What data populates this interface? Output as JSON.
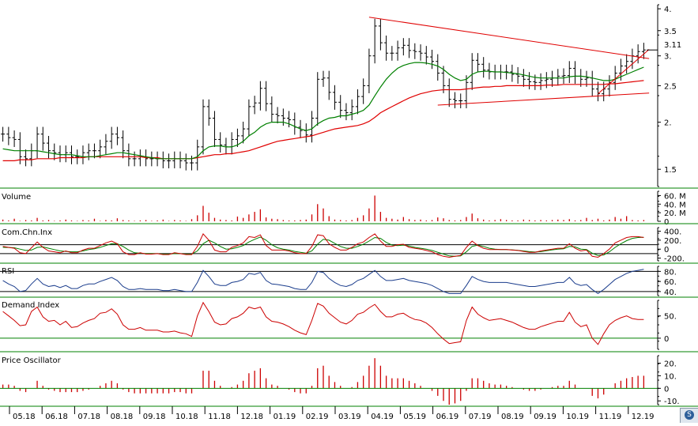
{
  "chart_data": {
    "type": "stock-chart",
    "colors": {
      "price_bar": "#000000",
      "ma_short": "#008000",
      "ma_long": "#e00000",
      "trendline": "#e00000",
      "volume": "#cc0000",
      "cci": "#cc0000",
      "cci_signal": "#008000",
      "rsi": "#1a3c8c",
      "demand": "#cc0000",
      "oscillator": "#cc0000",
      "separator": "#008000"
    },
    "x_axis": {
      "labels": [
        "05.18",
        "06.18",
        "07.18",
        "08.18",
        "09.18",
        "10.18",
        "11.18",
        "12.18",
        "01.19",
        "02.19",
        "03.19",
        "04.19",
        "05.19",
        "06.19",
        "07.19",
        "08.19",
        "09.19",
        "10.19",
        "11.19",
        "12.19"
      ]
    },
    "price": {
      "ylim": [
        1.35,
        4.1
      ],
      "log_scale": true,
      "ticks": [
        "4.",
        "3.5",
        "3.",
        "2.5",
        "2.",
        "1.5"
      ],
      "tick_values": [
        4.0,
        3.5,
        3.0,
        2.5,
        2.0,
        1.5
      ],
      "last_value": "3.11",
      "last": 3.11,
      "close": [
        1.86,
        1.82,
        1.8,
        1.62,
        1.6,
        1.68,
        1.86,
        1.76,
        1.68,
        1.66,
        1.64,
        1.66,
        1.62,
        1.62,
        1.66,
        1.68,
        1.68,
        1.72,
        1.78,
        1.86,
        1.82,
        1.68,
        1.6,
        1.6,
        1.62,
        1.6,
        1.6,
        1.6,
        1.58,
        1.58,
        1.6,
        1.58,
        1.56,
        1.56,
        1.72,
        2.2,
        2.05,
        1.8,
        1.74,
        1.72,
        1.8,
        1.84,
        1.92,
        2.2,
        2.25,
        2.46,
        2.24,
        2.1,
        2.08,
        2.05,
        2.03,
        1.94,
        1.9,
        1.85,
        2.05,
        2.6,
        2.62,
        2.4,
        2.26,
        2.15,
        2.12,
        2.2,
        2.34,
        2.5,
        3.0,
        3.6,
        3.25,
        3.05,
        3.05,
        3.15,
        3.2,
        3.1,
        3.08,
        3.05,
        2.98,
        2.9,
        2.7,
        2.5,
        2.3,
        2.28,
        2.28,
        2.55,
        2.92,
        2.85,
        2.75,
        2.72,
        2.72,
        2.72,
        2.72,
        2.68,
        2.65,
        2.6,
        2.56,
        2.55,
        2.58,
        2.6,
        2.62,
        2.65,
        2.66,
        2.78,
        2.65,
        2.6,
        2.62,
        2.45,
        2.38,
        2.45,
        2.55,
        2.7,
        2.82,
        2.9,
        3.0,
        3.08,
        3.11
      ],
      "ma_short": [
        1.7,
        1.69,
        1.68,
        1.68,
        1.68,
        1.68,
        1.68,
        1.67,
        1.66,
        1.65,
        1.64,
        1.64,
        1.64,
        1.63,
        1.62,
        1.62,
        1.62,
        1.63,
        1.64,
        1.65,
        1.66,
        1.66,
        1.65,
        1.64,
        1.63,
        1.62,
        1.61,
        1.6,
        1.6,
        1.6,
        1.6,
        1.6,
        1.6,
        1.6,
        1.62,
        1.68,
        1.72,
        1.73,
        1.73,
        1.72,
        1.72,
        1.74,
        1.78,
        1.84,
        1.88,
        1.94,
        1.98,
        2.0,
        2.0,
        2.0,
        1.98,
        1.95,
        1.92,
        1.9,
        1.92,
        1.98,
        2.02,
        2.05,
        2.06,
        2.08,
        2.08,
        2.1,
        2.12,
        2.15,
        2.22,
        2.35,
        2.48,
        2.6,
        2.7,
        2.78,
        2.83,
        2.86,
        2.88,
        2.88,
        2.87,
        2.85,
        2.82,
        2.76,
        2.68,
        2.62,
        2.58,
        2.6,
        2.68,
        2.72,
        2.73,
        2.73,
        2.72,
        2.72,
        2.71,
        2.7,
        2.69,
        2.67,
        2.65,
        2.63,
        2.62,
        2.62,
        2.62,
        2.62,
        2.62,
        2.64,
        2.65,
        2.65,
        2.64,
        2.62,
        2.6,
        2.58,
        2.58,
        2.6,
        2.64,
        2.68,
        2.72,
        2.76,
        2.8
      ],
      "ma_long": [
        1.58,
        1.58,
        1.58,
        1.59,
        1.59,
        1.59,
        1.6,
        1.6,
        1.6,
        1.6,
        1.61,
        1.61,
        1.61,
        1.61,
        1.61,
        1.62,
        1.62,
        1.62,
        1.62,
        1.62,
        1.62,
        1.62,
        1.62,
        1.62,
        1.62,
        1.61,
        1.61,
        1.61,
        1.6,
        1.6,
        1.6,
        1.6,
        1.6,
        1.6,
        1.61,
        1.62,
        1.63,
        1.64,
        1.64,
        1.65,
        1.65,
        1.66,
        1.67,
        1.68,
        1.7,
        1.72,
        1.74,
        1.76,
        1.78,
        1.79,
        1.8,
        1.81,
        1.82,
        1.83,
        1.84,
        1.86,
        1.88,
        1.9,
        1.92,
        1.93,
        1.94,
        1.95,
        1.96,
        1.98,
        2.01,
        2.06,
        2.12,
        2.16,
        2.2,
        2.24,
        2.28,
        2.32,
        2.35,
        2.38,
        2.4,
        2.42,
        2.43,
        2.44,
        2.44,
        2.44,
        2.44,
        2.45,
        2.46,
        2.47,
        2.48,
        2.48,
        2.49,
        2.49,
        2.5,
        2.5,
        2.5,
        2.5,
        2.5,
        2.5,
        2.5,
        2.51,
        2.51,
        2.51,
        2.52,
        2.52,
        2.52,
        2.52,
        2.52,
        2.52,
        2.52,
        2.52,
        2.53,
        2.53,
        2.54,
        2.55,
        2.56,
        2.57,
        2.58
      ],
      "trendlines": [
        {
          "from": [
            64,
            3.8
          ],
          "to": [
            111,
            2.95
          ]
        },
        {
          "from": [
            76,
            2.22
          ],
          "to": [
            111,
            2.39
          ]
        },
        {
          "from": [
            104,
            2.38
          ],
          "to": [
            111,
            3.12
          ]
        }
      ]
    },
    "volume": {
      "title": "Volume",
      "ticks": [
        "60. M",
        "40. M",
        "20. M",
        "0"
      ],
      "tick_values": [
        60,
        40,
        20,
        0
      ],
      "ylim": [
        0,
        70
      ],
      "values": [
        4,
        2,
        6,
        1,
        3,
        2,
        8,
        2,
        3,
        1,
        2,
        4,
        2,
        1,
        3,
        2,
        6,
        1,
        3,
        2,
        7,
        3,
        2,
        1,
        2,
        3,
        1,
        2,
        4,
        1,
        3,
        2,
        1,
        5,
        14,
        36,
        20,
        8,
        4,
        3,
        2,
        11,
        8,
        16,
        22,
        28,
        9,
        6,
        5,
        3,
        2,
        2,
        3,
        4,
        16,
        40,
        30,
        12,
        4,
        3,
        2,
        3,
        8,
        14,
        30,
        60,
        22,
        8,
        6,
        4,
        10,
        5,
        3,
        4,
        2,
        3,
        9,
        7,
        3,
        2,
        3,
        10,
        18,
        7,
        4,
        2,
        3,
        5,
        3,
        2,
        2,
        4,
        3,
        2,
        3,
        2,
        3,
        4,
        3,
        5,
        2,
        3,
        8,
        3,
        6,
        2,
        4,
        10,
        6,
        12,
        3,
        2,
        3
      ],
      "unit": "M"
    },
    "cci": {
      "title": "Com.Chn.Inx",
      "ticks": [
        "400.",
        "200.",
        "0",
        "-200."
      ],
      "tick_values": [
        400,
        200,
        0,
        -200
      ],
      "ylim": [
        -260,
        480
      ],
      "ref_lines": [
        100,
        -100
      ],
      "values": [
        60,
        40,
        20,
        -80,
        -100,
        30,
        160,
        40,
        -40,
        -60,
        -80,
        -40,
        -80,
        -80,
        -20,
        20,
        20,
        80,
        140,
        180,
        120,
        -60,
        -120,
        -120,
        -80,
        -110,
        -110,
        -100,
        -120,
        -120,
        -80,
        -100,
        -120,
        -120,
        60,
        340,
        200,
        -20,
        -60,
        -60,
        40,
        80,
        140,
        280,
        260,
        320,
        80,
        -20,
        -20,
        -20,
        -40,
        -80,
        -100,
        -100,
        60,
        320,
        300,
        120,
        40,
        -20,
        -20,
        40,
        120,
        160,
        260,
        340,
        180,
        60,
        60,
        100,
        110,
        40,
        20,
        0,
        -30,
        -60,
        -120,
        -160,
        -180,
        -160,
        -140,
        40,
        180,
        80,
        20,
        -10,
        -10,
        -10,
        -10,
        -20,
        -30,
        -50,
        -70,
        -70,
        -40,
        -20,
        0,
        20,
        20,
        120,
        20,
        -40,
        -20,
        -160,
        -180,
        -100,
        0,
        140,
        200,
        260,
        280,
        280,
        260
      ],
      "signal": [
        40,
        38,
        30,
        0,
        -30,
        -20,
        40,
        50,
        20,
        -10,
        -40,
        -50,
        -60,
        -60,
        -40,
        -10,
        10,
        40,
        80,
        120,
        120,
        60,
        -20,
        -80,
        -90,
        -100,
        -100,
        -100,
        -110,
        -110,
        -100,
        -100,
        -110,
        -110,
        -40,
        120,
        200,
        140,
        60,
        0,
        10,
        40,
        80,
        160,
        220,
        270,
        200,
        100,
        30,
        0,
        -20,
        -50,
        -70,
        -90,
        -40,
        110,
        220,
        200,
        130,
        60,
        20,
        20,
        60,
        110,
        180,
        260,
        240,
        150,
        90,
        80,
        90,
        70,
        40,
        20,
        0,
        -30,
        -70,
        -110,
        -150,
        -160,
        -150,
        -60,
        60,
        90,
        60,
        20,
        0,
        -10,
        -10,
        -15,
        -25,
        -40,
        -55,
        -65,
        -55,
        -35,
        -15,
        0,
        10,
        60,
        50,
        0,
        -10,
        -90,
        -140,
        -130,
        -60,
        40,
        120,
        190,
        240,
        260,
        265
      ],
      "labels": []
    },
    "rsi": {
      "title": "RSI",
      "ticks": [
        "80.",
        "60.",
        "40."
      ],
      "tick_values": [
        80,
        60,
        40
      ],
      "ylim": [
        32,
        90
      ],
      "ref_lines": [
        80,
        40
      ],
      "values": [
        62,
        55,
        50,
        40,
        42,
        55,
        66,
        55,
        50,
        52,
        48,
        52,
        46,
        46,
        52,
        55,
        55,
        60,
        64,
        68,
        62,
        50,
        44,
        44,
        46,
        44,
        44,
        44,
        42,
        42,
        44,
        42,
        40,
        40,
        58,
        82,
        70,
        55,
        52,
        52,
        58,
        60,
        64,
        76,
        74,
        78,
        62,
        55,
        54,
        52,
        50,
        46,
        44,
        44,
        58,
        80,
        78,
        66,
        58,
        52,
        50,
        54,
        62,
        66,
        74,
        82,
        70,
        62,
        62,
        64,
        66,
        62,
        60,
        58,
        56,
        52,
        46,
        40,
        36,
        36,
        36,
        52,
        70,
        64,
        60,
        58,
        58,
        58,
        58,
        56,
        54,
        52,
        50,
        50,
        52,
        54,
        56,
        58,
        58,
        68,
        56,
        52,
        54,
        44,
        36,
        44,
        54,
        64,
        70,
        76,
        80,
        82,
        84
      ],
      "labels": []
    },
    "demand": {
      "title": "Demand Index",
      "ticks": [
        "50.",
        "0"
      ],
      "tick_values": [
        50,
        0
      ],
      "ylim": [
        -25,
        85
      ],
      "ref_lines": [
        0
      ],
      "values": [
        60,
        50,
        40,
        28,
        30,
        60,
        70,
        48,
        38,
        40,
        30,
        38,
        24,
        26,
        34,
        40,
        44,
        56,
        58,
        66,
        54,
        30,
        20,
        20,
        24,
        18,
        18,
        18,
        14,
        14,
        16,
        12,
        10,
        4,
        50,
        80,
        60,
        36,
        30,
        32,
        44,
        48,
        56,
        70,
        66,
        70,
        48,
        38,
        36,
        32,
        26,
        18,
        12,
        8,
        40,
        78,
        72,
        56,
        46,
        36,
        32,
        40,
        54,
        58,
        68,
        76,
        60,
        48,
        48,
        54,
        56,
        48,
        42,
        40,
        34,
        24,
        10,
        -2,
        -12,
        -10,
        -8,
        40,
        70,
        54,
        46,
        40,
        42,
        44,
        40,
        36,
        30,
        24,
        20,
        20,
        26,
        30,
        34,
        38,
        38,
        58,
        36,
        26,
        30,
        0,
        -14,
        10,
        30,
        40,
        46,
        50,
        44,
        42,
        42
      ],
      "labels": []
    },
    "oscillator": {
      "title": "Price Oscillator",
      "ticks": [
        "20.",
        "10.",
        "0",
        "-10."
      ],
      "tick_values": [
        20,
        10,
        0,
        -10
      ],
      "ylim": [
        -13,
        26
      ],
      "ref_lines": [
        0
      ],
      "values": [
        3,
        3,
        2,
        -2,
        -3,
        0,
        6,
        2,
        -1,
        -2,
        -3,
        -3,
        -3,
        -3,
        -2,
        -1,
        0,
        2,
        4,
        6,
        4,
        -1,
        -3,
        -4,
        -4,
        -4,
        -4,
        -4,
        -4,
        -4,
        -3,
        -3,
        -4,
        -4,
        0,
        14,
        14,
        6,
        2,
        0,
        1,
        3,
        6,
        12,
        14,
        16,
        8,
        3,
        2,
        0,
        -1,
        -3,
        -4,
        -4,
        2,
        16,
        18,
        10,
        5,
        2,
        0,
        1,
        5,
        10,
        18,
        24,
        18,
        10,
        8,
        8,
        8,
        6,
        4,
        2,
        0,
        -2,
        -6,
        -10,
        -13,
        -12,
        -10,
        -2,
        8,
        8,
        6,
        4,
        3,
        3,
        2,
        1,
        0,
        -1,
        -2,
        -2,
        -1,
        0,
        1,
        2,
        2,
        6,
        3,
        0,
        0,
        -6,
        -8,
        -5,
        0,
        4,
        6,
        8,
        9,
        10,
        10
      ]
    }
  },
  "ui": {
    "corner_glyph": "S"
  }
}
